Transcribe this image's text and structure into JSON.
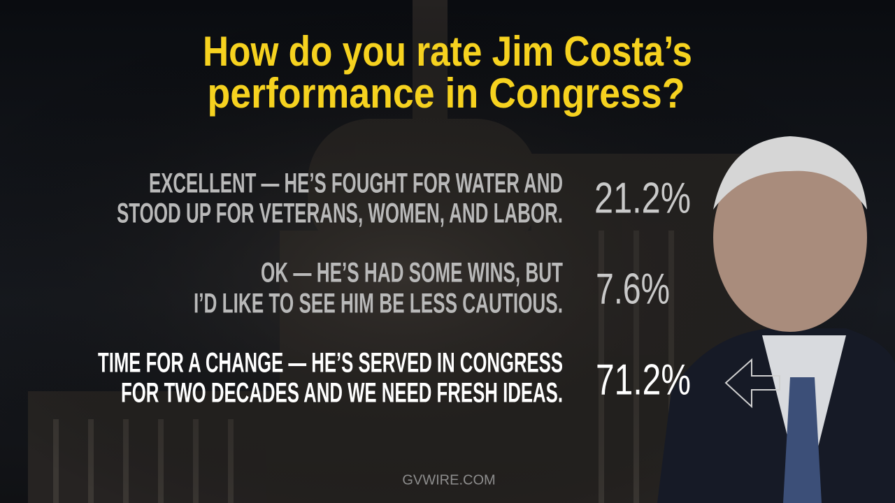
{
  "header": {
    "title_lines": [
      "How do you rate Jim Costa’s",
      "performance in Congress?"
    ]
  },
  "options": [
    {
      "label_lines": [
        "EXCELLENT — HE’S FOUGHT FOR WATER AND",
        "STOOD UP FOR VETERANS, WOMEN, AND LABOR."
      ],
      "percent": "21.2%"
    },
    {
      "label_lines": [
        "OK — HE’S HAD SOME WINS, BUT",
        "I’D LIKE TO SEE HIM BE LESS CAUTIOUS."
      ],
      "percent": "7.6%"
    },
    {
      "label_lines": [
        "TIME FOR A CHANGE — HE’S SERVED IN CONGRESS",
        "FOR TWO DECADES AND WE NEED FRESH IDEAS."
      ],
      "percent": "71.2%"
    }
  ],
  "footer": {
    "logo": "GVWIRE.COM"
  }
}
